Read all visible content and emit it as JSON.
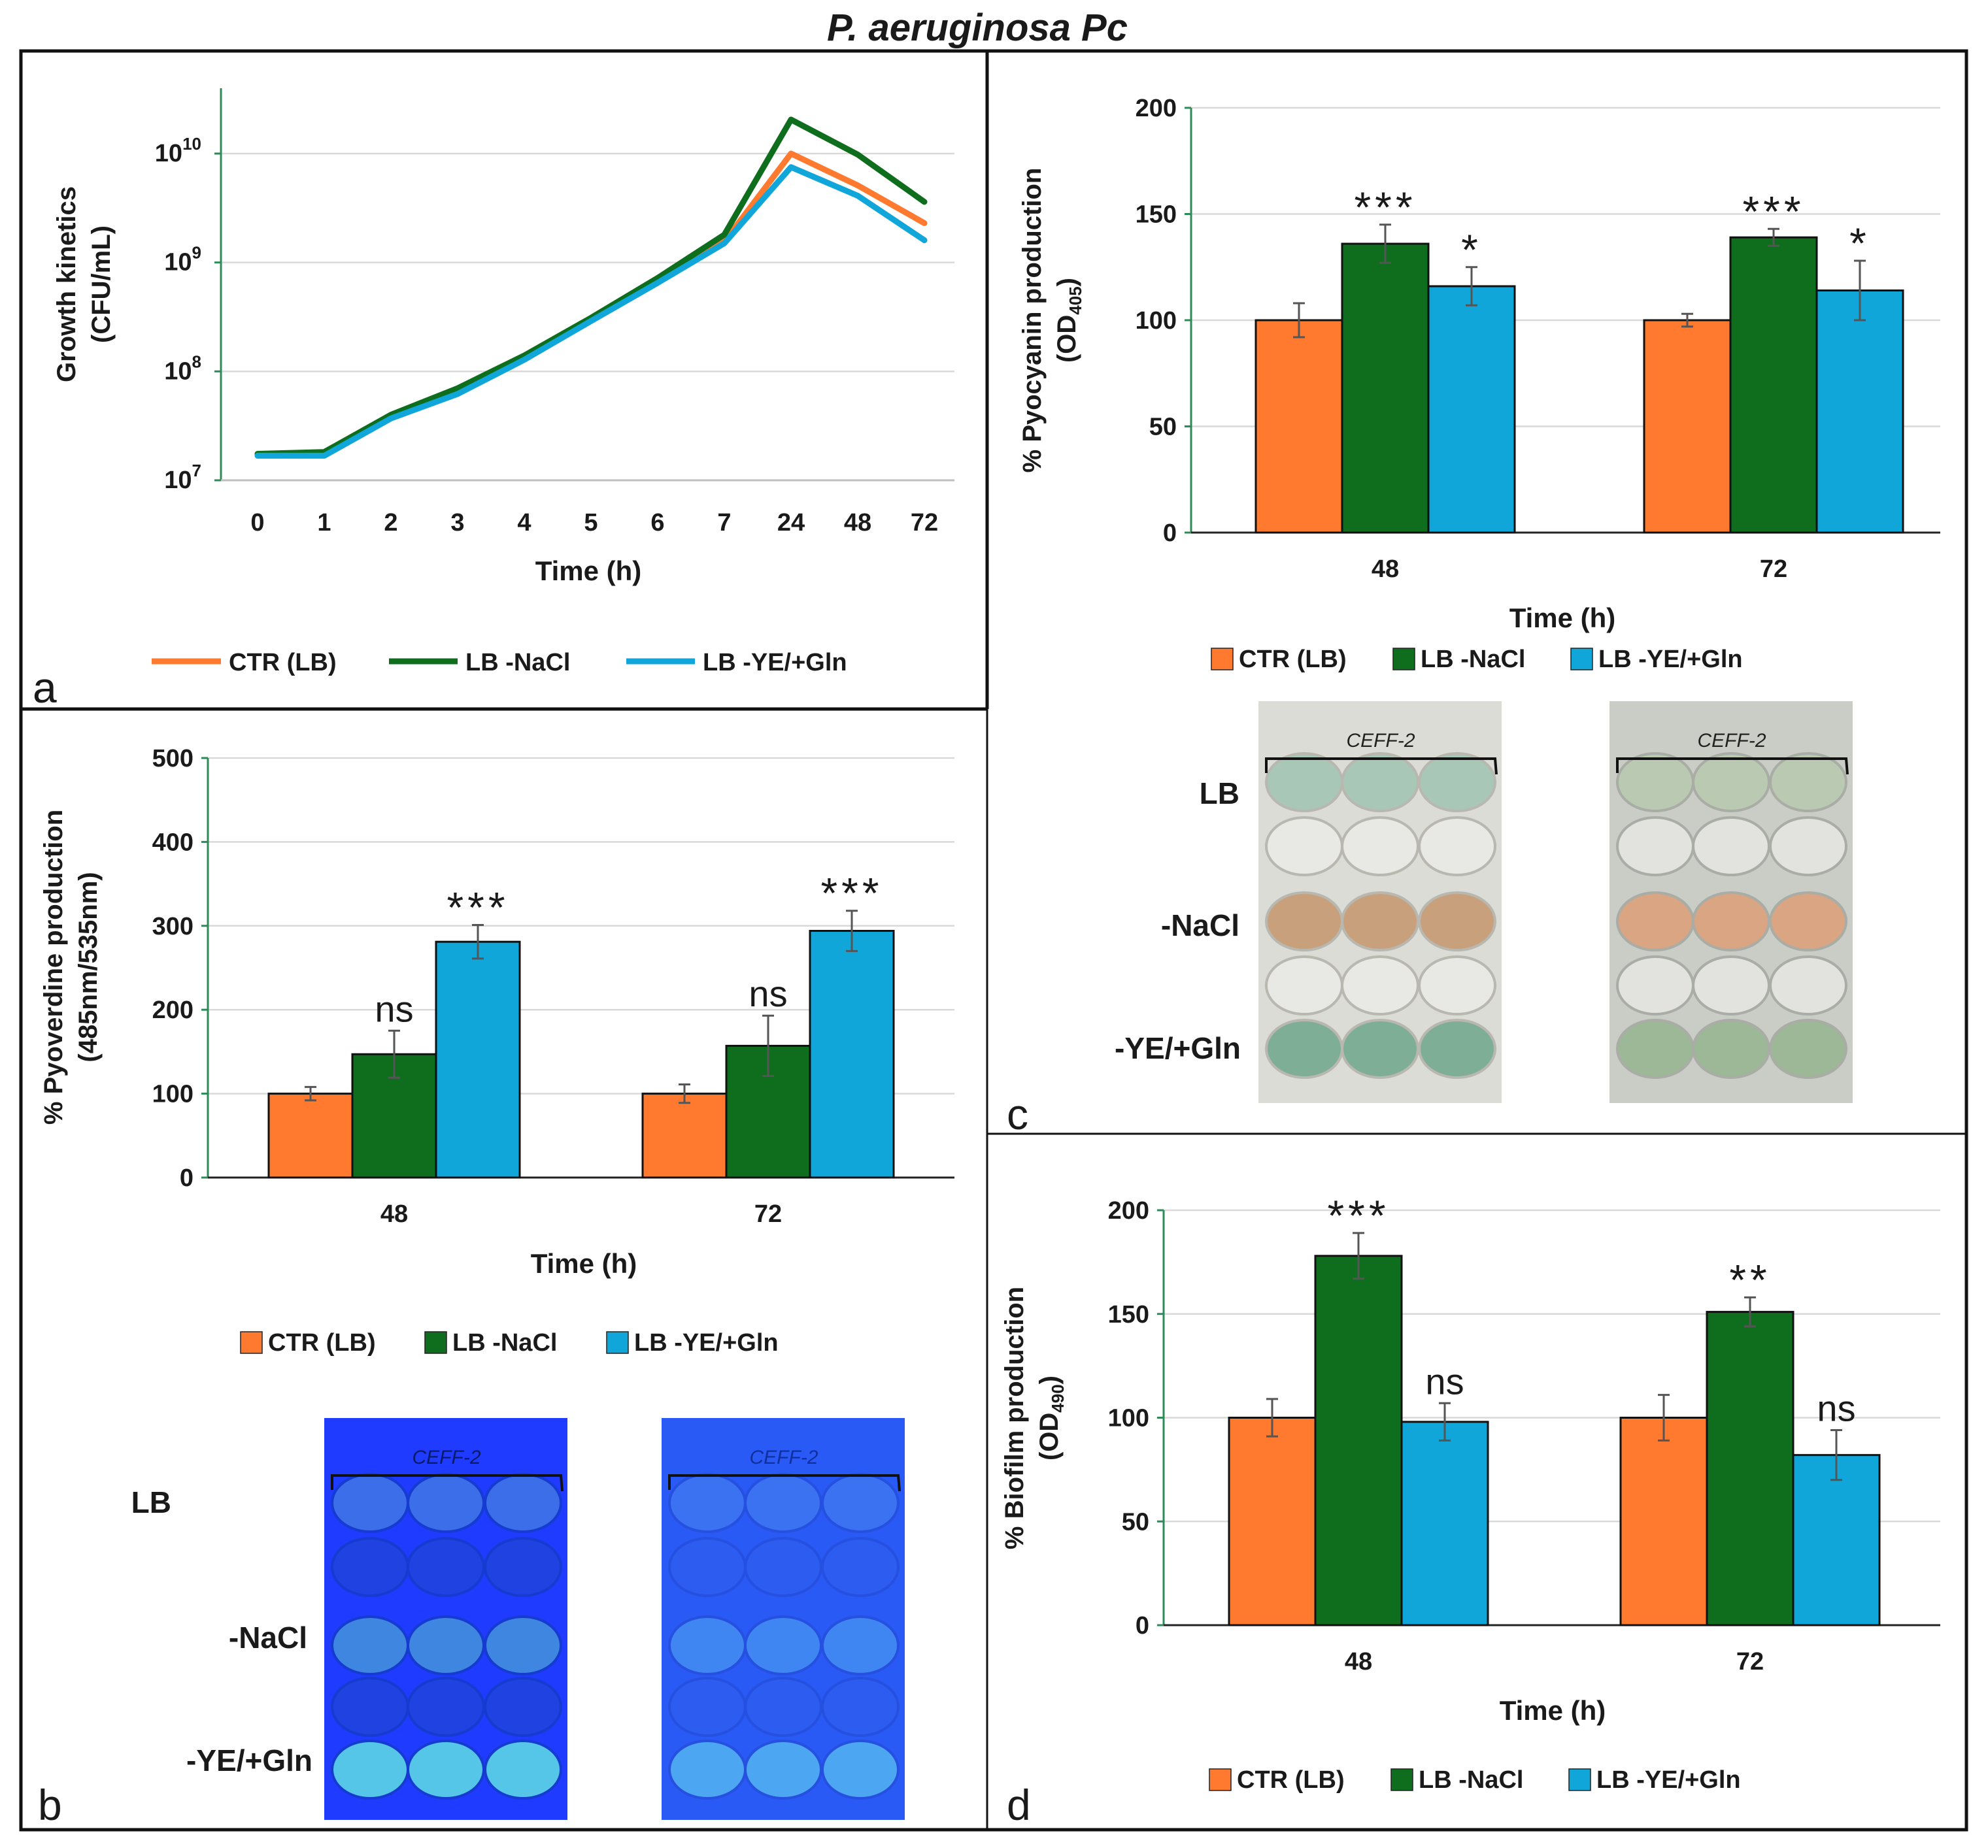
{
  "figure_title": "P. aeruginosa Pc",
  "colors": {
    "ctr": "#FF7A2F",
    "nacl": "#0E6E1E",
    "ye": "#10A6D9",
    "axis_green": "#2E8B57",
    "grid": "#D9D9D9",
    "text": "#1a1a1a",
    "uv_plate": "#1E3BFF",
    "uv_plate_dim": "#2A5AF5",
    "plate_light": "#DCDCD6"
  },
  "legend": {
    "ctr": "CTR (LB)",
    "nacl": "LB -NaCl",
    "ye": "LB -YE/+Gln"
  },
  "panel_labels": {
    "a": "a",
    "b": "b",
    "c": "c",
    "d": "d"
  },
  "plate_rows": {
    "lb": "LB",
    "nacl": "-NaCl",
    "ye": "-YE/+Gln"
  },
  "plate_writing": "CEFF-2",
  "chart_data": [
    {
      "panel": "a",
      "type": "line",
      "ylabel_line1": "Growth kinetics",
      "ylabel_line2": "(CFU/mL)",
      "xlabel": "Time (h)",
      "y_scale": "log10",
      "ylim_exp": [
        7,
        10.6
      ],
      "ytick_base": "10",
      "ytick_exps": [
        "7",
        "8",
        "9",
        "10"
      ],
      "categories": [
        "0",
        "1",
        "2",
        "3",
        "4",
        "5",
        "6",
        "7",
        "24",
        "48",
        "72"
      ],
      "series": [
        {
          "name": "CTR (LB)",
          "key": "ctr",
          "values": [
            17000000,
            17500000,
            39000000,
            66000000,
            135000000,
            300000000,
            680000000,
            1550000000,
            10000000000,
            5100000000,
            2300000000
          ]
        },
        {
          "name": "LB -NaCl",
          "key": "nacl",
          "values": [
            17500000,
            18200000,
            40000000,
            70000000,
            140000000,
            310000000,
            720000000,
            1800000000,
            20500000000,
            9800000000,
            3600000000
          ]
        },
        {
          "name": "LB -YE/+Gln",
          "key": "ye",
          "values": [
            16800000,
            16800000,
            37000000,
            62000000,
            128000000,
            290000000,
            650000000,
            1500000000,
            7500000000,
            4100000000,
            1600000000
          ]
        }
      ]
    },
    {
      "panel": "b",
      "type": "bar",
      "ylabel_line1": "% Pyoverdine production",
      "ylabel_line2": "(485nm/535nm)",
      "xlabel": "Time (h)",
      "ylim": [
        0,
        500
      ],
      "yticks": [
        "0",
        "100",
        "200",
        "300",
        "400",
        "500"
      ],
      "categories": [
        "48",
        "72"
      ],
      "series": [
        {
          "name": "CTR (LB)",
          "key": "ctr",
          "values": [
            100,
            100
          ],
          "errors": [
            8,
            11
          ],
          "sig": [
            "",
            ""
          ]
        },
        {
          "name": "LB -NaCl",
          "key": "nacl",
          "values": [
            147,
            157
          ],
          "errors": [
            28,
            36
          ],
          "sig": [
            "ns",
            "ns"
          ]
        },
        {
          "name": "LB -YE/+Gln",
          "key": "ye",
          "values": [
            281,
            294
          ],
          "errors": [
            20,
            24
          ],
          "sig": [
            "***",
            "***"
          ]
        }
      ]
    },
    {
      "panel": "c",
      "type": "bar",
      "ylabel_line1": "% Pyocyanin production",
      "ylabel_main": "(OD",
      "ylabel_sub": "405",
      "ylabel_close": ")",
      "xlabel": "Time (h)",
      "ylim": [
        0,
        200
      ],
      "yticks": [
        "0",
        "50",
        "100",
        "150",
        "200"
      ],
      "categories": [
        "48",
        "72"
      ],
      "series": [
        {
          "name": "CTR (LB)",
          "key": "ctr",
          "values": [
            100,
            100
          ],
          "errors": [
            8,
            3
          ],
          "sig": [
            "",
            ""
          ]
        },
        {
          "name": "LB -NaCl",
          "key": "nacl",
          "values": [
            136,
            139
          ],
          "errors": [
            9,
            4
          ],
          "sig": [
            "***",
            "***"
          ]
        },
        {
          "name": "LB -YE/+Gln",
          "key": "ye",
          "values": [
            116,
            114
          ],
          "errors": [
            9,
            14
          ],
          "sig": [
            "*",
            "*"
          ]
        }
      ]
    },
    {
      "panel": "d",
      "type": "bar",
      "ylabel_line1": "% Biofilm production",
      "ylabel_main": "(OD",
      "ylabel_sub": "490",
      "ylabel_close": ")",
      "xlabel": "Time (h)",
      "ylim": [
        0,
        200
      ],
      "yticks": [
        "0",
        "50",
        "100",
        "150",
        "200"
      ],
      "categories": [
        "48",
        "72"
      ],
      "series": [
        {
          "name": "CTR (LB)",
          "key": "ctr",
          "values": [
            100,
            100
          ],
          "errors": [
            9,
            11
          ],
          "sig": [
            "",
            ""
          ]
        },
        {
          "name": "LB -NaCl",
          "key": "nacl",
          "values": [
            178,
            151
          ],
          "errors": [
            11,
            7
          ],
          "sig": [
            "***",
            "**"
          ]
        },
        {
          "name": "LB -YE/+Gln",
          "key": "ye",
          "values": [
            98,
            82
          ],
          "errors": [
            9,
            12
          ],
          "sig": [
            "ns",
            "ns"
          ]
        }
      ]
    }
  ]
}
